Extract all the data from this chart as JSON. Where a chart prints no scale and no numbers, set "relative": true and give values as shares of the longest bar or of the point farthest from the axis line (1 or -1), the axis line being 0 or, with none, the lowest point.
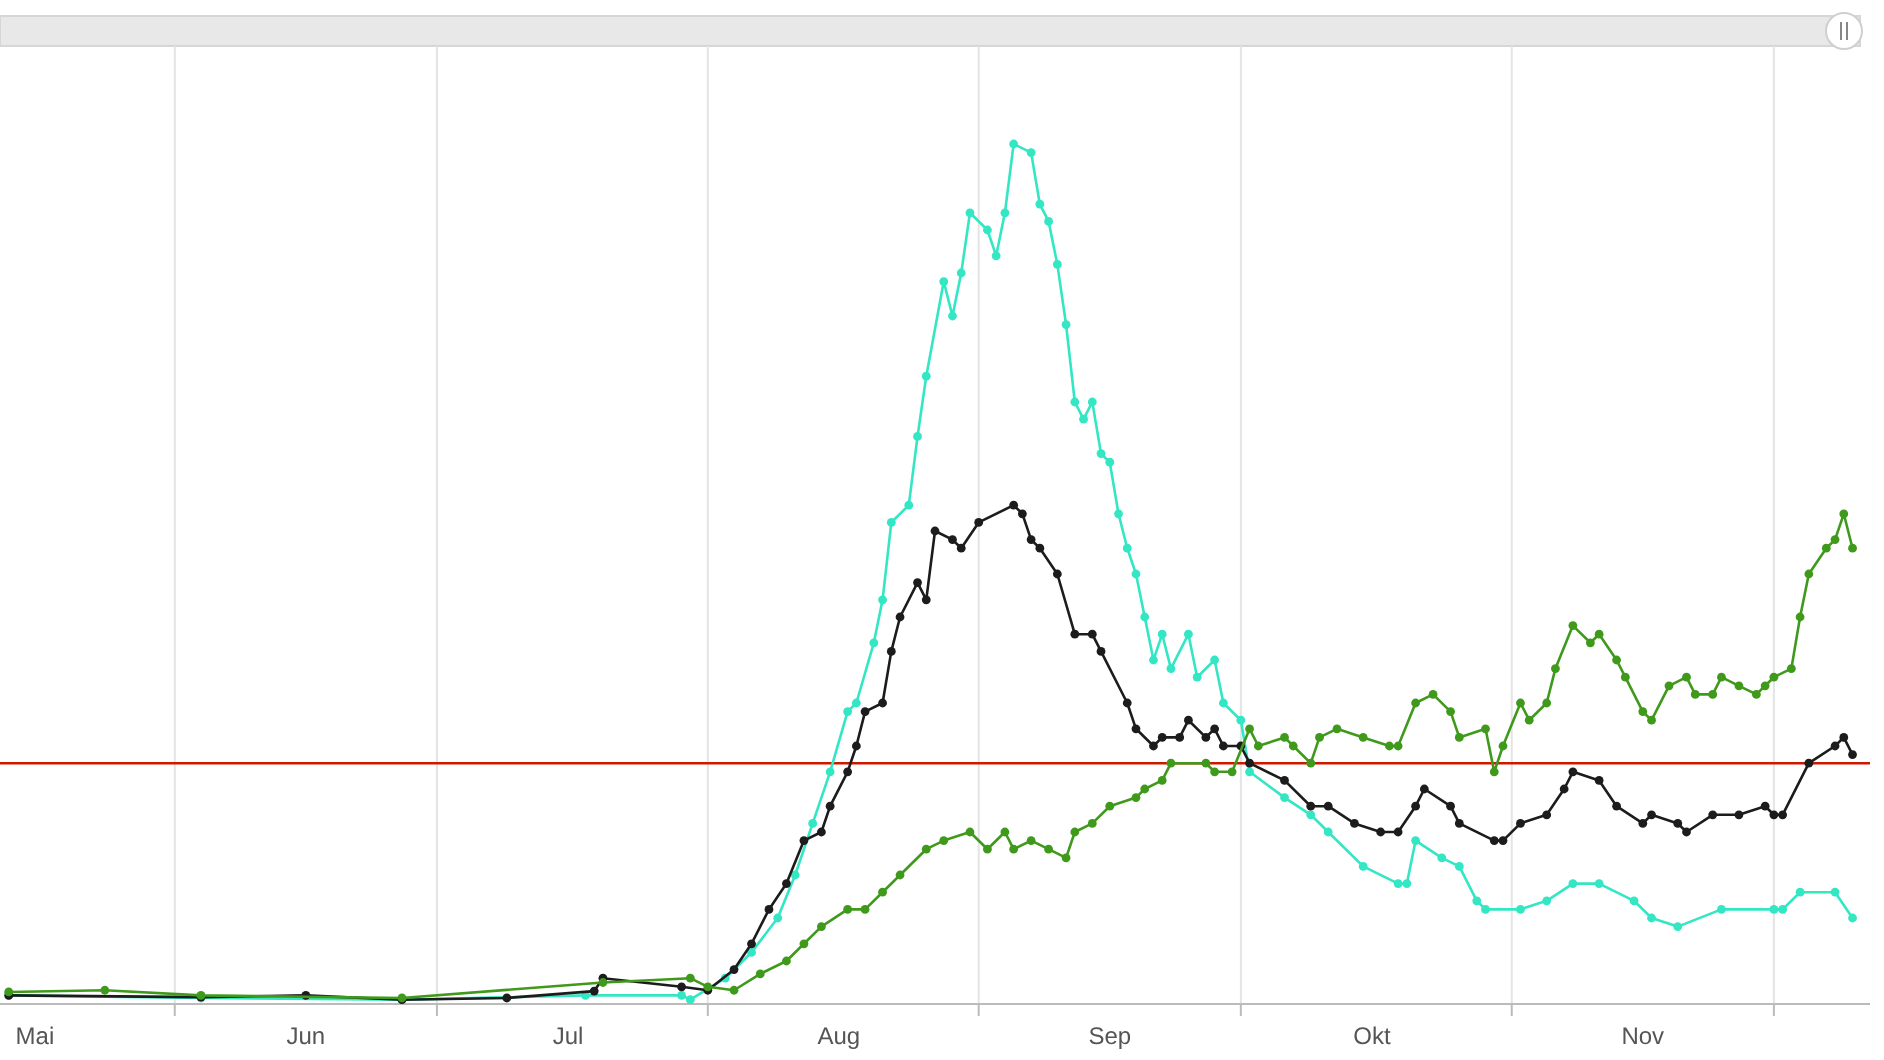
{
  "chart_data": {
    "type": "line",
    "relative": true,
    "marker": "circle",
    "line_style": "solid",
    "grid": "x",
    "xlim": [
      "--05-12",
      "--12-12"
    ],
    "xticks": [
      {
        "value": "--05-16",
        "label": "Mai"
      },
      {
        "value": "--06-01",
        "label": null
      },
      {
        "value": "--06-16",
        "label": "Jun"
      },
      {
        "value": "--07-01",
        "label": null
      },
      {
        "value": "--07-16",
        "label": "Jul"
      },
      {
        "value": "--08-01",
        "label": null
      },
      {
        "value": "--08-16",
        "label": "Aug"
      },
      {
        "value": "--09-01",
        "label": null
      },
      {
        "value": "--09-16",
        "label": "Sep"
      },
      {
        "value": "--10-01",
        "label": null
      },
      {
        "value": "--10-16",
        "label": "Okt"
      },
      {
        "value": "--11-01",
        "label": null
      },
      {
        "value": "--11-16",
        "label": "Nov"
      },
      {
        "value": "--12-01",
        "label": null
      }
    ],
    "ref_lines": [
      {
        "axis": "y",
        "value": 0.28,
        "label": null,
        "color": "#cc1a00"
      }
    ],
    "series": [
      {
        "color": "#33e6c4",
        "x": [
          "--05-13",
          "--06-04",
          "--06-27",
          "--07-18",
          "--07-29",
          "--07-30",
          "--08-03",
          "--08-06",
          "--08-09",
          "--08-11",
          "--08-13",
          "--08-15",
          "--08-17",
          "--08-18",
          "--08-20",
          "--08-21",
          "--08-22",
          "--08-24",
          "--08-25",
          "--08-26",
          "--08-28",
          "--08-29",
          "--08-30",
          "--08-31",
          "--09-02",
          "--09-03",
          "--09-04",
          "--09-05",
          "--09-07",
          "--09-08",
          "--09-09",
          "--09-10",
          "--09-11",
          "--09-12",
          "--09-13",
          "--09-14",
          "--09-15",
          "--09-16",
          "--09-17",
          "--09-18",
          "--09-19",
          "--09-20",
          "--09-21",
          "--09-22",
          "--09-23",
          "--09-25",
          "--09-26",
          "--09-28",
          "--09-29",
          "--10-01",
          "--10-02",
          "--10-06",
          "--10-09",
          "--10-11",
          "--10-15",
          "--10-19",
          "--10-20",
          "--10-21",
          "--10-24",
          "--10-26",
          "--10-28",
          "--10-29",
          "--11-02",
          "--11-05",
          "--11-08",
          "--11-11",
          "--11-15",
          "--11-17",
          "--11-20",
          "--11-25",
          "--12-01",
          "--12-02",
          "--12-04",
          "--12-08",
          "--12-10"
        ],
        "values": [
          0.01,
          0.007,
          0.005,
          0.01,
          0.01,
          0.005,
          0.03,
          0.06,
          0.1,
          0.15,
          0.21,
          0.27,
          0.34,
          0.35,
          0.42,
          0.47,
          0.56,
          0.58,
          0.66,
          0.73,
          0.84,
          0.8,
          0.85,
          0.92,
          0.9,
          0.87,
          0.92,
          1.0,
          0.99,
          0.93,
          0.91,
          0.86,
          0.79,
          0.7,
          0.68,
          0.7,
          0.64,
          0.63,
          0.57,
          0.53,
          0.5,
          0.45,
          0.4,
          0.43,
          0.39,
          0.43,
          0.38,
          0.4,
          0.35,
          0.33,
          0.27,
          0.24,
          0.22,
          0.2,
          0.16,
          0.14,
          0.14,
          0.19,
          0.17,
          0.16,
          0.12,
          0.11,
          0.11,
          0.12,
          0.14,
          0.14,
          0.12,
          0.1,
          0.09,
          0.11,
          0.11,
          0.11,
          0.13,
          0.13,
          0.1
        ]
      },
      {
        "color": "#1c1c1c",
        "x": [
          "--05-13",
          "--06-04",
          "--06-16",
          "--06-27",
          "--07-09",
          "--07-19",
          "--07-20",
          "--07-29",
          "--08-01",
          "--08-04",
          "--08-06",
          "--08-08",
          "--08-10",
          "--08-12",
          "--08-14",
          "--08-15",
          "--08-17",
          "--08-18",
          "--08-19",
          "--08-21",
          "--08-22",
          "--08-23",
          "--08-25",
          "--08-26",
          "--08-27",
          "--08-29",
          "--08-30",
          "--09-01",
          "--09-05",
          "--09-06",
          "--09-07",
          "--09-08",
          "--09-10",
          "--09-12",
          "--09-14",
          "--09-15",
          "--09-18",
          "--09-19",
          "--09-21",
          "--09-22",
          "--09-24",
          "--09-25",
          "--09-27",
          "--09-28",
          "--09-29",
          "--10-01",
          "--10-02",
          "--10-06",
          "--10-09",
          "--10-11",
          "--10-14",
          "--10-17",
          "--10-19",
          "--10-21",
          "--10-22",
          "--10-25",
          "--10-26",
          "--10-30",
          "--10-31",
          "--11-02",
          "--11-05",
          "--11-07",
          "--11-08",
          "--11-11",
          "--11-13",
          "--11-16",
          "--11-17",
          "--11-20",
          "--11-21",
          "--11-24",
          "--11-27",
          "--11-30",
          "--12-01",
          "--12-02",
          "--12-05",
          "--12-08",
          "--12-09",
          "--12-10"
        ],
        "values": [
          0.01,
          0.008,
          0.01,
          0.005,
          0.007,
          0.015,
          0.03,
          0.02,
          0.016,
          0.04,
          0.07,
          0.11,
          0.14,
          0.19,
          0.2,
          0.23,
          0.27,
          0.3,
          0.34,
          0.35,
          0.41,
          0.45,
          0.49,
          0.47,
          0.55,
          0.54,
          0.53,
          0.56,
          0.58,
          0.57,
          0.54,
          0.53,
          0.5,
          0.43,
          0.43,
          0.41,
          0.35,
          0.32,
          0.3,
          0.31,
          0.31,
          0.33,
          0.31,
          0.32,
          0.3,
          0.3,
          0.28,
          0.26,
          0.23,
          0.23,
          0.21,
          0.2,
          0.2,
          0.23,
          0.25,
          0.23,
          0.21,
          0.19,
          0.19,
          0.21,
          0.22,
          0.25,
          0.27,
          0.26,
          0.23,
          0.21,
          0.22,
          0.21,
          0.2,
          0.22,
          0.22,
          0.23,
          0.22,
          0.22,
          0.28,
          0.3,
          0.31,
          0.29
        ]
      },
      {
        "color": "#3f9a1c",
        "x": [
          "--05-13",
          "--05-24",
          "--06-04",
          "--06-27",
          "--07-20",
          "--07-30",
          "--08-01",
          "--08-04",
          "--08-07",
          "--08-10",
          "--08-12",
          "--08-14",
          "--08-17",
          "--08-19",
          "--08-21",
          "--08-23",
          "--08-26",
          "--08-28",
          "--08-31",
          "--09-02",
          "--09-04",
          "--09-05",
          "--09-07",
          "--09-09",
          "--09-11",
          "--09-12",
          "--09-14",
          "--09-16",
          "--09-19",
          "--09-20",
          "--09-22",
          "--09-23",
          "--09-27",
          "--09-28",
          "--09-30",
          "--10-02",
          "--10-03",
          "--10-06",
          "--10-07",
          "--10-09",
          "--10-10",
          "--10-12",
          "--10-15",
          "--10-18",
          "--10-19",
          "--10-21",
          "--10-23",
          "--10-25",
          "--10-26",
          "--10-29",
          "--10-30",
          "--10-31",
          "--11-02",
          "--11-03",
          "--11-05",
          "--11-06",
          "--11-08",
          "--11-10",
          "--11-11",
          "--11-13",
          "--11-14",
          "--11-16",
          "--11-17",
          "--11-19",
          "--11-21",
          "--11-22",
          "--11-24",
          "--11-25",
          "--11-27",
          "--11-29",
          "--11-30",
          "--12-01",
          "--12-03",
          "--12-04",
          "--12-05",
          "--12-07",
          "--12-08",
          "--12-09",
          "--12-10"
        ],
        "values": [
          0.014,
          0.016,
          0.01,
          0.007,
          0.025,
          0.03,
          0.02,
          0.016,
          0.035,
          0.05,
          0.07,
          0.09,
          0.11,
          0.11,
          0.13,
          0.15,
          0.18,
          0.19,
          0.2,
          0.18,
          0.2,
          0.18,
          0.19,
          0.18,
          0.17,
          0.2,
          0.21,
          0.23,
          0.24,
          0.25,
          0.26,
          0.28,
          0.28,
          0.27,
          0.27,
          0.32,
          0.3,
          0.31,
          0.3,
          0.28,
          0.31,
          0.32,
          0.31,
          0.3,
          0.3,
          0.35,
          0.36,
          0.34,
          0.31,
          0.32,
          0.27,
          0.3,
          0.35,
          0.33,
          0.35,
          0.39,
          0.44,
          0.42,
          0.43,
          0.4,
          0.38,
          0.34,
          0.33,
          0.37,
          0.38,
          0.36,
          0.36,
          0.38,
          0.37,
          0.36,
          0.37,
          0.38,
          0.39,
          0.45,
          0.5,
          0.53,
          0.54,
          0.57,
          0.53
        ]
      }
    ]
  }
}
